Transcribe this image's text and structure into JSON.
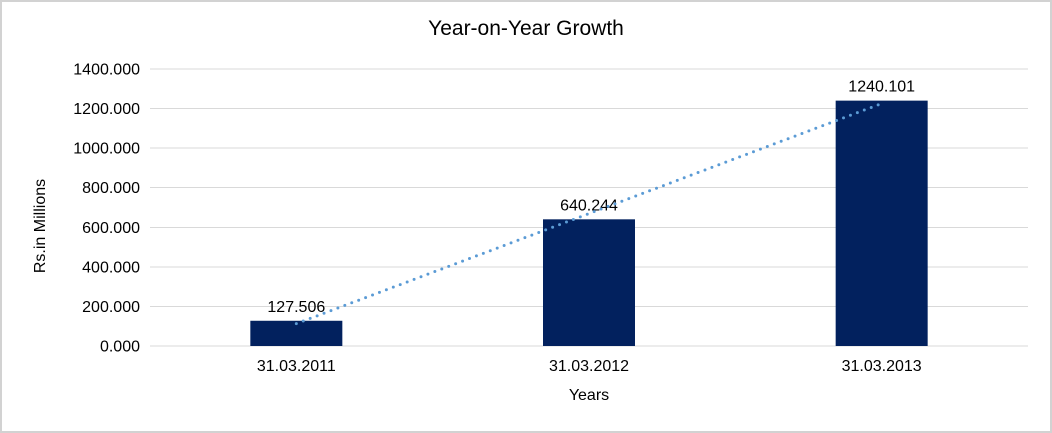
{
  "window": {
    "background": "#ffffff",
    "frame_border_color": "#d2d2d2"
  },
  "chart_data": {
    "type": "bar",
    "title": "Year-on-Year Growth",
    "xlabel": "Years",
    "ylabel": "Rs.in Millions",
    "categories": [
      "31.03.2011",
      "31.03.2012",
      "31.03.2013"
    ],
    "values": [
      127.506,
      640.244,
      1240.101
    ],
    "data_labels": [
      "127.506",
      "640.244",
      "1240.101"
    ],
    "ylim": [
      0,
      1400
    ],
    "y_tick_step": 200,
    "y_tick_labels": [
      "0.000",
      "200.000",
      "400.000",
      "600.000",
      "800.000",
      "1000.000",
      "1200.000",
      "1400.000"
    ],
    "grid": true,
    "legend": "none",
    "trendline": {
      "kind": "linear",
      "style": "dotted",
      "color": "#5b9bd5"
    },
    "colors": {
      "bar": "#02215e",
      "gridline": "#d9d9d9",
      "text": "#000000"
    }
  }
}
